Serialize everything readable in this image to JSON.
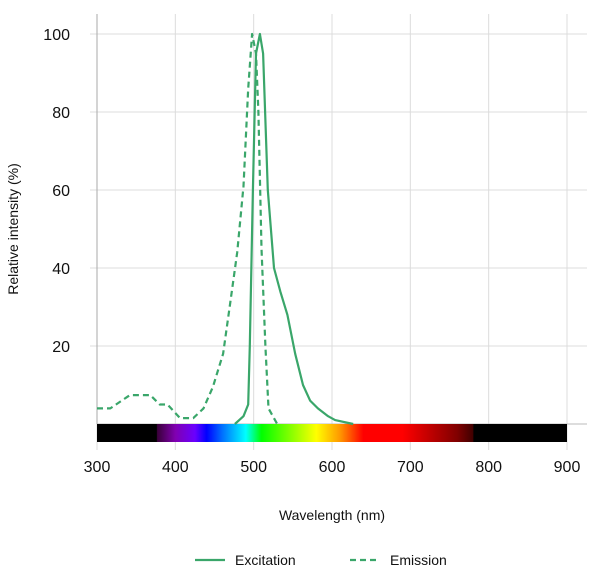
{
  "chart_data": {
    "type": "line",
    "xlabel": "Wavelength (nm)",
    "ylabel": "Relative intensity (%)",
    "xlim": [
      300,
      900
    ],
    "ylim": [
      0,
      100
    ],
    "xticks": [
      300,
      400,
      500,
      600,
      700,
      800,
      900
    ],
    "yticks": [
      20,
      40,
      60,
      80,
      100
    ],
    "grid": true,
    "legend_placement": "bottom",
    "line_color": "#3aa66a",
    "spectrum_bar": true,
    "series": [
      {
        "name": "Excitation",
        "style": "solid",
        "x": [
          476,
          487,
          493,
          495,
          499,
          503,
          508,
          512,
          518,
          526,
          534,
          543,
          553,
          563,
          572,
          582,
          595,
          604,
          627
        ],
        "y": [
          0,
          2,
          5,
          20,
          60,
          95,
          100,
          95,
          60,
          40,
          34,
          28,
          18,
          10,
          6,
          4,
          2,
          1,
          0
        ]
      },
      {
        "name": "Emission",
        "style": "dashed",
        "x": [
          300,
          317,
          342,
          368,
          380,
          390,
          406,
          423,
          436,
          448,
          461,
          470,
          479,
          487,
          493,
          498,
          503,
          506,
          510,
          515,
          519,
          530
        ],
        "y": [
          4,
          4,
          7.4,
          7.4,
          5,
          5,
          1.5,
          1.5,
          4,
          9.5,
          18,
          31,
          44,
          61,
          86,
          100,
          95,
          80,
          45,
          20,
          4,
          0
        ]
      }
    ]
  }
}
